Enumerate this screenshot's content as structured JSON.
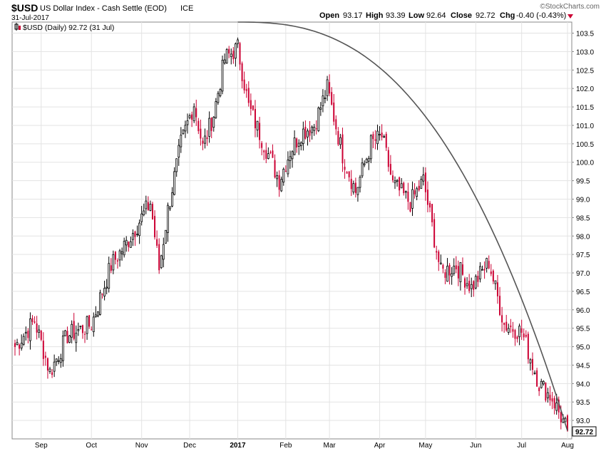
{
  "header": {
    "symbol": "$USD",
    "name": "US Dollar Index - Cash Settle (EOD)",
    "exchange": "ICE",
    "date": "31-Jul-2017",
    "watermark": "©StockCharts.com",
    "open_label": "Open",
    "open": "93.17",
    "high_label": "High",
    "high": "93.39",
    "low_label": "Low",
    "low": "92.64",
    "close_label": "Close",
    "close": "92.72",
    "chg_label": "Chg",
    "chg": "-0.40 (-0.43%)",
    "legend": "$USD (Daily) 92.72 (31 Jul)",
    "last_price_tag": "92.72"
  },
  "colors": {
    "up": "#000000",
    "down": "#cc0033",
    "trendline": "#555555",
    "grid": "#e3e3e3",
    "chg_arrow": "#cc0033"
  },
  "chart_data": {
    "type": "candlestick",
    "series_name": "$USD (Daily)",
    "x_tick_labels": [
      "Sep",
      "Oct",
      "Nov",
      "Dec",
      "2017",
      "Feb",
      "Mar",
      "Apr",
      "May",
      "Jun",
      "Jul",
      "Aug"
    ],
    "x_tick_positions": [
      12,
      35,
      58,
      80,
      102,
      124,
      144,
      167,
      188,
      211,
      232,
      253
    ],
    "y_tick_labels": [
      "93.0",
      "93.5",
      "94.0",
      "94.5",
      "95.0",
      "95.5",
      "96.0",
      "96.5",
      "97.0",
      "97.5",
      "98.0",
      "98.5",
      "99.0",
      "99.5",
      "100.0",
      "100.5",
      "101.0",
      "101.5",
      "102.0",
      "102.5",
      "103.0",
      "103.5"
    ],
    "ylim": [
      92.5,
      103.8
    ],
    "y_axis_side": "right",
    "grid": true,
    "close_path_segments": [
      {
        "start": 0,
        "end": 9,
        "from": 95.0,
        "to": 95.7
      },
      {
        "start": 9,
        "end": 16,
        "from": 95.7,
        "to": 94.3
      },
      {
        "start": 16,
        "end": 24,
        "from": 94.3,
        "to": 95.3
      },
      {
        "start": 24,
        "end": 35,
        "from": 95.3,
        "to": 95.6
      },
      {
        "start": 35,
        "end": 44,
        "from": 95.6,
        "to": 97.2
      },
      {
        "start": 44,
        "end": 51,
        "from": 97.2,
        "to": 97.8
      },
      {
        "start": 51,
        "end": 62,
        "from": 97.8,
        "to": 98.9
      },
      {
        "start": 62,
        "end": 66,
        "from": 98.9,
        "to": 97.1
      },
      {
        "start": 66,
        "end": 70,
        "from": 97.1,
        "to": 98.7
      },
      {
        "start": 70,
        "end": 76,
        "from": 98.7,
        "to": 100.5
      },
      {
        "start": 76,
        "end": 82,
        "from": 100.5,
        "to": 101.6
      },
      {
        "start": 82,
        "end": 86,
        "from": 101.6,
        "to": 100.4
      },
      {
        "start": 86,
        "end": 91,
        "from": 100.4,
        "to": 101.3
      },
      {
        "start": 91,
        "end": 96,
        "from": 101.3,
        "to": 102.8
      },
      {
        "start": 96,
        "end": 102,
        "from": 102.8,
        "to": 103.1
      },
      {
        "start": 102,
        "end": 107,
        "from": 103.1,
        "to": 101.5
      },
      {
        "start": 107,
        "end": 114,
        "from": 101.5,
        "to": 100.5
      },
      {
        "start": 114,
        "end": 121,
        "from": 100.5,
        "to": 99.5
      },
      {
        "start": 121,
        "end": 126,
        "from": 99.5,
        "to": 100.3
      },
      {
        "start": 126,
        "end": 131,
        "from": 100.3,
        "to": 100.8
      },
      {
        "start": 131,
        "end": 137,
        "from": 100.8,
        "to": 101.0
      },
      {
        "start": 137,
        "end": 143,
        "from": 101.0,
        "to": 102.0
      },
      {
        "start": 143,
        "end": 150,
        "from": 102.0,
        "to": 100.2
      },
      {
        "start": 150,
        "end": 156,
        "from": 100.2,
        "to": 99.2
      },
      {
        "start": 156,
        "end": 163,
        "from": 99.2,
        "to": 100.5
      },
      {
        "start": 163,
        "end": 168,
        "from": 100.5,
        "to": 100.7
      },
      {
        "start": 168,
        "end": 173,
        "from": 100.7,
        "to": 99.4
      },
      {
        "start": 173,
        "end": 181,
        "from": 99.4,
        "to": 98.9
      },
      {
        "start": 181,
        "end": 187,
        "from": 98.9,
        "to": 99.5
      },
      {
        "start": 187,
        "end": 195,
        "from": 99.5,
        "to": 97.0
      },
      {
        "start": 195,
        "end": 202,
        "from": 97.0,
        "to": 97.2
      },
      {
        "start": 202,
        "end": 209,
        "from": 97.2,
        "to": 96.6
      },
      {
        "start": 209,
        "end": 217,
        "from": 96.6,
        "to": 97.3
      },
      {
        "start": 217,
        "end": 224,
        "from": 97.3,
        "to": 95.6
      },
      {
        "start": 224,
        "end": 232,
        "from": 95.6,
        "to": 95.4
      },
      {
        "start": 232,
        "end": 240,
        "from": 95.4,
        "to": 94.0
      },
      {
        "start": 240,
        "end": 246,
        "from": 94.0,
        "to": 93.6
      },
      {
        "start": 246,
        "end": 253,
        "from": 93.6,
        "to": 92.72
      }
    ],
    "trendline": {
      "start": {
        "date": "2017-01-03",
        "value": 103.8
      },
      "end": {
        "date": "2017-07-31",
        "value": 92.72
      },
      "shape": "concave-down arc"
    },
    "last_close": 92.72
  }
}
